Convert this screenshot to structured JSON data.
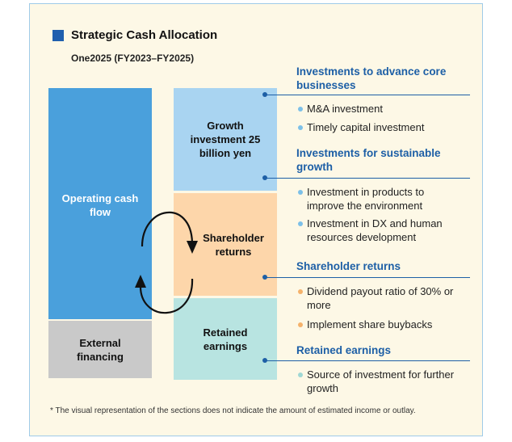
{
  "title": "Strategic Cash Allocation",
  "subtitle": "One2025 (FY2023–FY2025)",
  "sources": [
    {
      "label": "Operating cash flow"
    },
    {
      "label": "External financing"
    }
  ],
  "uses": [
    {
      "label": "Growth investment 25 billion yen"
    },
    {
      "label": "Shareholder returns"
    },
    {
      "label": "Retained earnings"
    }
  ],
  "sections": [
    {
      "heading": "Investments to advance core businesses",
      "bullets": [
        "M&A investment",
        "Timely capital investment"
      ]
    },
    {
      "heading": "Investments for sustainable growth",
      "bullets": [
        "Investment in products to improve the environment",
        "Investment in DX and human resources development"
      ]
    },
    {
      "heading": "Shareholder returns",
      "bullets": [
        "Dividend payout ratio of 30% or more",
        "Implement share buybacks"
      ]
    },
    {
      "heading": "Retained earnings",
      "bullets": [
        "Source of investment for further growth"
      ]
    }
  ],
  "footnote": "* The visual representation of the sections does not indicate the amount of estimated income or outlay."
}
